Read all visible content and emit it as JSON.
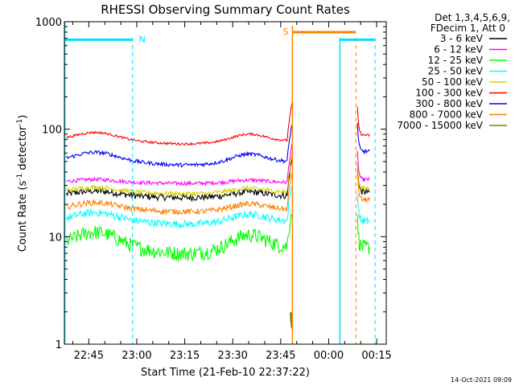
{
  "chart_data": {
    "type": "line",
    "title": "RHESSI Observing Summary Count Rates",
    "xlabel": "Start Time (21-Feb-10 22:37:22)",
    "ylabel": "Count Rate (s",
    "ylabel_sup": "-1",
    "ylabel_mid": " detector",
    "ylabel_end": ")",
    "y_scale": "log",
    "ylim": [
      1,
      1000
    ],
    "xlim": [
      "22:37:22",
      "00:18:00"
    ],
    "x_ticks": [
      "22:45",
      "23:00",
      "23:15",
      "23:30",
      "23:45",
      "00:00",
      "00:15"
    ],
    "y_ticks": [
      "1",
      "10",
      "100",
      "1000"
    ],
    "grid": false,
    "legend_title": [
      "Det 1,3,4,5,6,9,",
      "FDecim 1, Att 0"
    ],
    "series": [
      {
        "name": "3 - 6 keV",
        "color": "#000000"
      },
      {
        "name": "6 - 12 keV",
        "color": "#ff00ff"
      },
      {
        "name": "12 - 25 keV",
        "color": "#00ff00"
      },
      {
        "name": "25 - 50 keV",
        "color": "#00ffff"
      },
      {
        "name": "50 - 100 keV",
        "color": "#d4d400"
      },
      {
        "name": "100 - 300 keV",
        "color": "#ff0000"
      },
      {
        "name": "300 - 800 keV",
        "color": "#0000ff"
      },
      {
        "name": "800 - 7000 keV",
        "color": "#ff8000"
      },
      {
        "name": "7000 - 15000 keV",
        "color": "#808000"
      }
    ],
    "flags": [
      {
        "label": "N",
        "color": "#00e0ff"
      },
      {
        "label": "S",
        "color": "#ff8000"
      }
    ]
  },
  "footer": {
    "timestamp": "14-Oct-2021 09:09"
  }
}
